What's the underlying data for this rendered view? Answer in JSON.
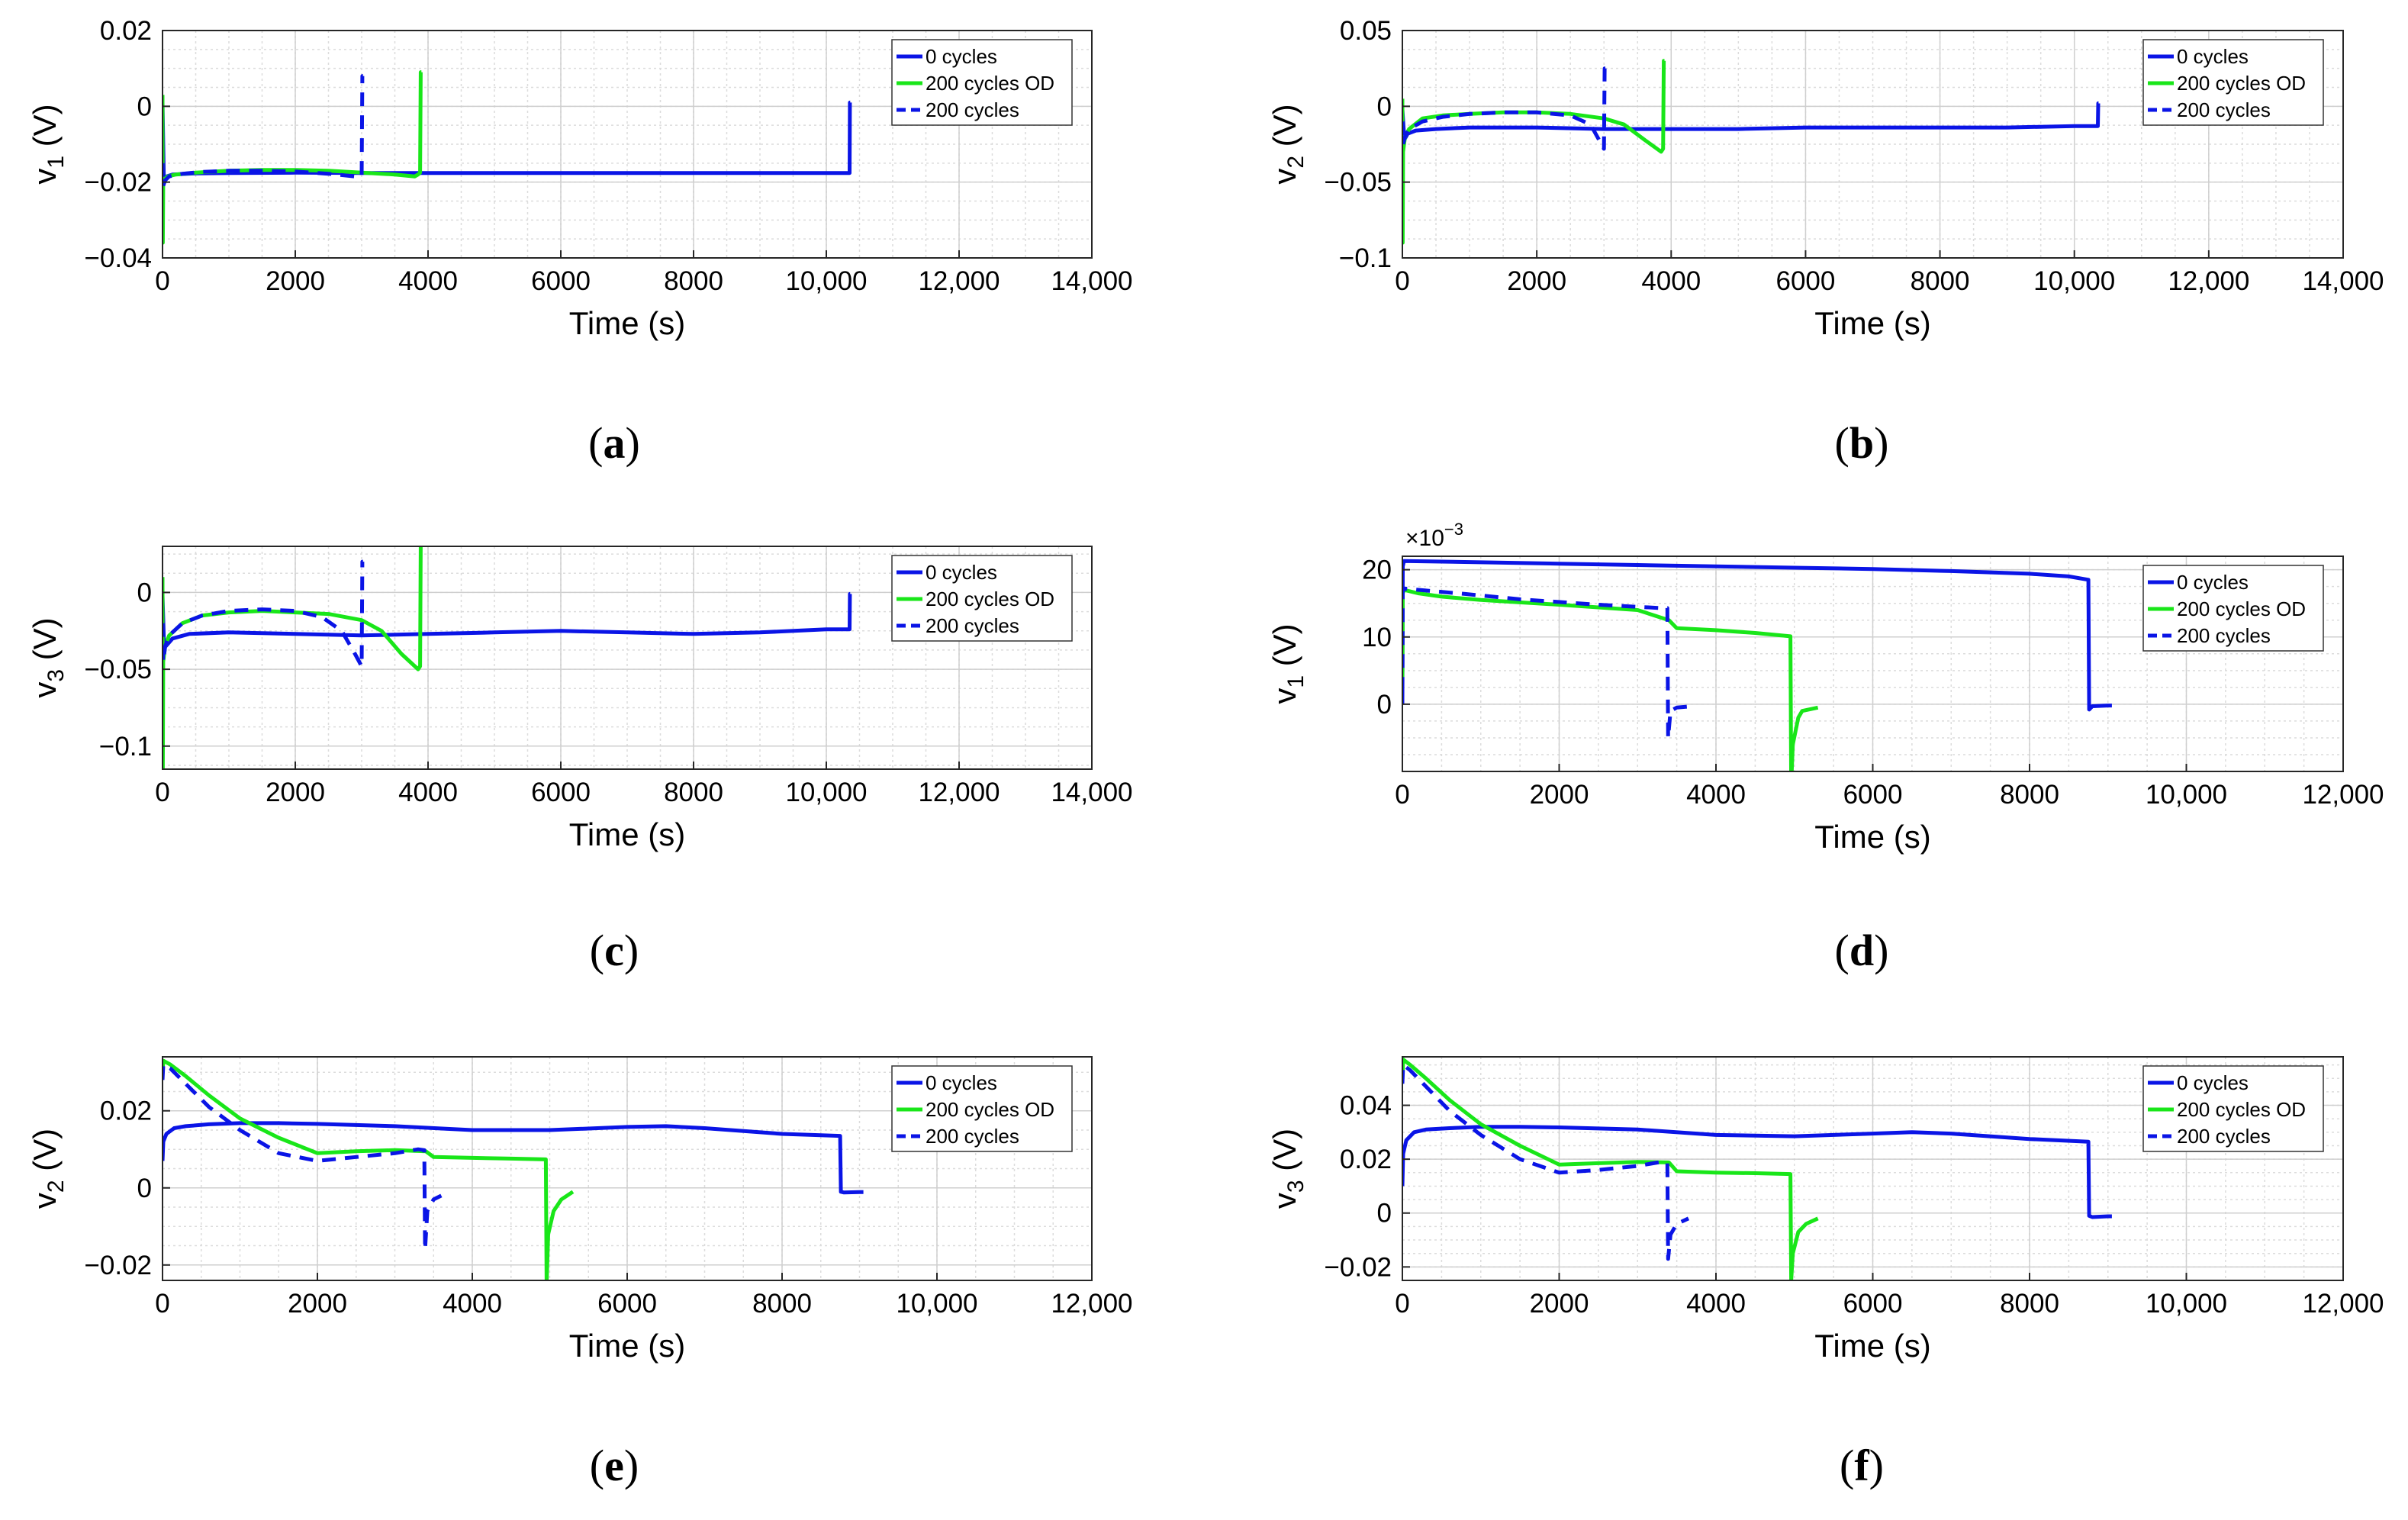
{
  "colors": {
    "blue": "#0a14e6",
    "green": "#19e619",
    "grid": "#dcdcdc",
    "axis": "#262626"
  },
  "chart_data": [
    {
      "type": "line",
      "panel": "a",
      "caption": "a",
      "ylabel_main": "v",
      "ylabel_sub": "1",
      "ylabel_unit": " (V)",
      "xlabel": "Time (s)",
      "xlim": [
        0,
        14000
      ],
      "ylim": [
        -0.04,
        0.02
      ],
      "xticks": [
        0,
        2000,
        4000,
        6000,
        8000,
        10000,
        12000,
        14000
      ],
      "xtick_labels": [
        "0",
        "2000",
        "4000",
        "6000",
        "8000",
        "10,000",
        "12,000",
        "14,000"
      ],
      "yticks": [
        -0.04,
        -0.02,
        0,
        0.02
      ],
      "ytick_labels": [
        "−0.04",
        "−0.02",
        "0",
        "0.02"
      ],
      "legend_position": "top-right",
      "series": [
        {
          "name": "0 cycles",
          "style": "solid",
          "color": "blue",
          "x": [
            0,
            20,
            60,
            150,
            500,
            1000,
            2000,
            3000,
            4000,
            5000,
            6000,
            7000,
            8000,
            9000,
            10000,
            10350,
            10355,
            10360
          ],
          "y": [
            0.001,
            -0.019,
            -0.0185,
            -0.018,
            -0.0177,
            -0.0176,
            -0.0175,
            -0.0176,
            -0.0176,
            -0.0176,
            -0.0176,
            -0.0176,
            -0.0176,
            -0.0176,
            -0.0176,
            -0.0176,
            0.001,
            0.001
          ]
        },
        {
          "name": "200 cycles OD",
          "style": "solid",
          "color": "green",
          "x": [
            0,
            5,
            10,
            30,
            80,
            200,
            500,
            1000,
            1500,
            2000,
            2500,
            3000,
            3500,
            3800,
            3850,
            3880,
            3890,
            3900
          ],
          "y": [
            0.003,
            -0.036,
            -0.021,
            -0.019,
            -0.0185,
            -0.018,
            -0.0175,
            -0.017,
            -0.0168,
            -0.0168,
            -0.017,
            -0.0175,
            -0.018,
            -0.0185,
            -0.018,
            -0.0175,
            0.009,
            0.009
          ]
        },
        {
          "name": "200 cycles",
          "style": "dashed",
          "color": "blue",
          "x": [
            0,
            10,
            40,
            100,
            300,
            600,
            1000,
            1500,
            2000,
            2500,
            2900,
            3000,
            3010,
            3020
          ],
          "y": [
            -0.015,
            -0.021,
            -0.0195,
            -0.0185,
            -0.0178,
            -0.0173,
            -0.017,
            -0.017,
            -0.0172,
            -0.0178,
            -0.0185,
            -0.0185,
            0.008,
            0.008
          ]
        }
      ]
    },
    {
      "type": "line",
      "panel": "b",
      "caption": "b",
      "ylabel_main": "v",
      "ylabel_sub": "2",
      "ylabel_unit": " (V)",
      "xlabel": "Time (s)",
      "xlim": [
        0,
        14000
      ],
      "ylim": [
        -0.1,
        0.05
      ],
      "xticks": [
        0,
        2000,
        4000,
        6000,
        8000,
        10000,
        12000,
        14000
      ],
      "xtick_labels": [
        "0",
        "2000",
        "4000",
        "6000",
        "8000",
        "10,000",
        "12,000",
        "14,000"
      ],
      "yticks": [
        -0.1,
        -0.05,
        0,
        0.05
      ],
      "ytick_labels": [
        "−0.1",
        "−0.05",
        "0",
        "0.05"
      ],
      "legend_position": "top-right",
      "series": [
        {
          "name": "0 cycles",
          "style": "solid",
          "color": "blue",
          "x": [
            0,
            30,
            80,
            200,
            500,
            1000,
            2000,
            3000,
            4000,
            5000,
            6000,
            7000,
            8000,
            9000,
            10000,
            10350,
            10355,
            10360
          ],
          "y": [
            -0.002,
            -0.022,
            -0.018,
            -0.016,
            -0.015,
            -0.014,
            -0.014,
            -0.015,
            -0.015,
            -0.015,
            -0.014,
            -0.014,
            -0.014,
            -0.014,
            -0.013,
            -0.013,
            0.002,
            0.002
          ]
        },
        {
          "name": "200 cycles OD",
          "style": "solid",
          "color": "green",
          "x": [
            0,
            5,
            10,
            40,
            100,
            300,
            600,
            1000,
            1500,
            2000,
            2500,
            3000,
            3300,
            3600,
            3850,
            3880,
            3890,
            3900
          ],
          "y": [
            0.005,
            -0.09,
            -0.03,
            -0.02,
            -0.015,
            -0.008,
            -0.006,
            -0.005,
            -0.004,
            -0.004,
            -0.005,
            -0.008,
            -0.012,
            -0.022,
            -0.03,
            -0.028,
            0.03,
            0.03
          ]
        },
        {
          "name": "200 cycles",
          "style": "dashed",
          "color": "blue",
          "x": [
            0,
            10,
            40,
            100,
            300,
            600,
            1000,
            1500,
            2000,
            2500,
            2800,
            3000,
            3010,
            3020
          ],
          "y": [
            -0.01,
            -0.025,
            -0.02,
            -0.015,
            -0.01,
            -0.007,
            -0.005,
            -0.004,
            -0.004,
            -0.006,
            -0.012,
            -0.028,
            0.025,
            0.025
          ]
        }
      ]
    },
    {
      "type": "line",
      "panel": "c",
      "caption": "c",
      "ylabel_main": "v",
      "ylabel_sub": "3",
      "ylabel_unit": " (V)",
      "xlabel": "Time (s)",
      "xlim": [
        0,
        14000
      ],
      "ylim": [
        -0.115,
        0.03
      ],
      "xticks": [
        0,
        2000,
        4000,
        6000,
        8000,
        10000,
        12000,
        14000
      ],
      "xtick_labels": [
        "0",
        "2000",
        "4000",
        "6000",
        "8000",
        "10,000",
        "12,000",
        "14,000"
      ],
      "yticks": [
        -0.1,
        -0.05,
        0
      ],
      "ytick_labels": [
        "−0.1",
        "−0.05",
        "0"
      ],
      "legend_position": "top-right",
      "series": [
        {
          "name": "0 cycles",
          "style": "solid",
          "color": "blue",
          "x": [
            0,
            20,
            50,
            150,
            400,
            1000,
            2000,
            3000,
            4000,
            5000,
            6000,
            7000,
            8000,
            9000,
            10000,
            10350,
            10355,
            10360
          ],
          "y": [
            -0.002,
            -0.03,
            -0.035,
            -0.03,
            -0.027,
            -0.026,
            -0.027,
            -0.028,
            -0.027,
            -0.026,
            -0.025,
            -0.026,
            -0.027,
            -0.026,
            -0.024,
            -0.024,
            -0.001,
            -0.001
          ]
        },
        {
          "name": "200 cycles OD",
          "style": "solid",
          "color": "green",
          "x": [
            0,
            5,
            10,
            40,
            100,
            300,
            600,
            1000,
            1500,
            2000,
            2500,
            3000,
            3300,
            3600,
            3850,
            3880,
            3890,
            3900
          ],
          "y": [
            0.01,
            -0.115,
            -0.045,
            -0.035,
            -0.028,
            -0.02,
            -0.015,
            -0.013,
            -0.012,
            -0.013,
            -0.014,
            -0.018,
            -0.025,
            -0.04,
            -0.05,
            -0.048,
            0.03,
            0.03
          ]
        },
        {
          "name": "200 cycles",
          "style": "dashed",
          "color": "blue",
          "x": [
            0,
            10,
            40,
            100,
            300,
            600,
            1000,
            1500,
            2000,
            2400,
            2700,
            2900,
            3000,
            3010,
            3020
          ],
          "y": [
            -0.02,
            -0.045,
            -0.035,
            -0.028,
            -0.02,
            -0.015,
            -0.012,
            -0.011,
            -0.012,
            -0.016,
            -0.025,
            -0.04,
            -0.048,
            0.02,
            0.02
          ]
        }
      ]
    },
    {
      "type": "line",
      "panel": "d",
      "caption": "d",
      "ylabel_main": "v",
      "ylabel_sub": "1",
      "ylabel_unit": " (V)",
      "xlabel": "Time (s)",
      "xlim": [
        0,
        12000
      ],
      "ylim": [
        -10,
        22
      ],
      "exponent_base": "×10",
      "exponent_power": "−3",
      "xticks": [
        0,
        2000,
        4000,
        6000,
        8000,
        10000,
        12000
      ],
      "xtick_labels": [
        "0",
        "2000",
        "4000",
        "6000",
        "8000",
        "10,000",
        "12,000"
      ],
      "yticks": [
        0,
        10,
        20
      ],
      "ytick_labels": [
        "0",
        "10",
        "20"
      ],
      "legend_position": "top-right",
      "series": [
        {
          "name": "0 cycles",
          "style": "solid",
          "color": "blue",
          "x": [
            0,
            5,
            20,
            500,
            1000,
            2000,
            3000,
            4000,
            5000,
            6000,
            7000,
            8000,
            8500,
            8750,
            8760,
            8800,
            9000,
            9050
          ],
          "y": [
            0,
            20.5,
            21.3,
            21.2,
            21.1,
            20.9,
            20.7,
            20.5,
            20.3,
            20.1,
            19.8,
            19.4,
            19.0,
            18.5,
            -0.8,
            -0.3,
            -0.2,
            -0.2
          ]
        },
        {
          "name": "200 cycles OD",
          "style": "solid",
          "color": "green",
          "x": [
            0,
            5,
            20,
            200,
            500,
            1000,
            2000,
            3000,
            3400,
            3500,
            4000,
            4500,
            4950,
            4960,
            4980,
            5050,
            5100,
            5300
          ],
          "y": [
            4,
            16.5,
            17.0,
            16.5,
            16.0,
            15.5,
            14.8,
            14.0,
            12.5,
            11.3,
            11.0,
            10.6,
            10.1,
            -12,
            -6,
            -2,
            -1,
            -0.5
          ]
        },
        {
          "name": "200 cycles",
          "style": "dashed",
          "color": "blue",
          "x": [
            0,
            5,
            30,
            300,
            800,
            1500,
            2500,
            3300,
            3380,
            3390,
            3420,
            3500,
            3700
          ],
          "y": [
            2,
            16.8,
            17.2,
            16.9,
            16.4,
            15.6,
            14.8,
            14.3,
            14.3,
            -5,
            -1,
            -0.5,
            -0.3
          ]
        }
      ]
    },
    {
      "type": "line",
      "panel": "e",
      "caption": "e",
      "ylabel_main": "v",
      "ylabel_sub": "2",
      "ylabel_unit": " (V)",
      "xlabel": "Time (s)",
      "xlim": [
        0,
        12000
      ],
      "ylim": [
        -0.024,
        0.034
      ],
      "xticks": [
        0,
        2000,
        4000,
        6000,
        8000,
        10000,
        12000
      ],
      "xtick_labels": [
        "0",
        "2000",
        "4000",
        "6000",
        "8000",
        "10,000",
        "12,000"
      ],
      "yticks": [
        -0.02,
        0,
        0.02
      ],
      "ytick_labels": [
        "−0.02",
        "0",
        "0.02"
      ],
      "legend_position": "top-right",
      "series": [
        {
          "name": "0 cycles",
          "style": "solid",
          "color": "blue",
          "x": [
            0,
            10,
            50,
            150,
            300,
            600,
            1000,
            1500,
            2000,
            3000,
            4000,
            5000,
            6000,
            6500,
            7000,
            8000,
            8750,
            8760,
            8800,
            9000,
            9050
          ],
          "y": [
            0.007,
            0.012,
            0.014,
            0.0155,
            0.016,
            0.0165,
            0.0168,
            0.0168,
            0.0166,
            0.016,
            0.015,
            0.015,
            0.0158,
            0.016,
            0.0155,
            0.014,
            0.0135,
            -0.001,
            -0.0012,
            -0.0011,
            -0.0011
          ]
        },
        {
          "name": "200 cycles OD",
          "style": "solid",
          "color": "green",
          "x": [
            0,
            10,
            100,
            300,
            600,
            1000,
            1500,
            2000,
            2500,
            3000,
            3400,
            3500,
            4000,
            4500,
            4950,
            4960,
            4980,
            5050,
            5150,
            5300
          ],
          "y": [
            0.03,
            0.033,
            0.032,
            0.029,
            0.024,
            0.018,
            0.013,
            0.009,
            0.0095,
            0.0098,
            0.0095,
            0.008,
            0.0078,
            0.0076,
            0.0074,
            -0.025,
            -0.012,
            -0.006,
            -0.003,
            -0.001
          ]
        },
        {
          "name": "200 cycles",
          "style": "dashed",
          "color": "blue",
          "x": [
            0,
            10,
            100,
            300,
            600,
            1000,
            1500,
            2000,
            2500,
            3000,
            3300,
            3380,
            3390,
            3420,
            3500,
            3600
          ],
          "y": [
            0.028,
            0.032,
            0.031,
            0.027,
            0.021,
            0.015,
            0.009,
            0.007,
            0.008,
            0.009,
            0.01,
            0.0098,
            -0.016,
            -0.006,
            -0.003,
            -0.002
          ]
        }
      ]
    },
    {
      "type": "line",
      "panel": "f",
      "caption": "f",
      "ylabel_main": "v",
      "ylabel_sub": "3",
      "ylabel_unit": " (V)",
      "xlabel": "Time (s)",
      "xlim": [
        0,
        12000
      ],
      "ylim": [
        -0.025,
        0.058
      ],
      "xticks": [
        0,
        2000,
        4000,
        6000,
        8000,
        10000,
        12000
      ],
      "xtick_labels": [
        "0",
        "2000",
        "4000",
        "6000",
        "8000",
        "10,000",
        "12,000"
      ],
      "yticks": [
        -0.02,
        0,
        0.02,
        0.04
      ],
      "ytick_labels": [
        "−0.02",
        "0",
        "0.02",
        "0.04"
      ],
      "legend_position": "top-right",
      "series": [
        {
          "name": "0 cycles",
          "style": "solid",
          "color": "blue",
          "x": [
            0,
            10,
            50,
            150,
            300,
            600,
            1000,
            1500,
            2000,
            3000,
            4000,
            5000,
            6000,
            6500,
            7000,
            8000,
            8750,
            8760,
            8800,
            9000,
            9050
          ],
          "y": [
            0.01,
            0.022,
            0.027,
            0.03,
            0.031,
            0.0315,
            0.032,
            0.032,
            0.0318,
            0.031,
            0.029,
            0.0285,
            0.0295,
            0.03,
            0.0295,
            0.0275,
            0.0265,
            -0.001,
            -0.0015,
            -0.0012,
            -0.0012
          ]
        },
        {
          "name": "200 cycles OD",
          "style": "solid",
          "color": "green",
          "x": [
            0,
            10,
            100,
            300,
            600,
            1000,
            1500,
            2000,
            2500,
            3000,
            3400,
            3500,
            4000,
            4500,
            4950,
            4960,
            4980,
            5050,
            5150,
            5300
          ],
          "y": [
            0.05,
            0.057,
            0.055,
            0.05,
            0.042,
            0.033,
            0.025,
            0.018,
            0.0185,
            0.019,
            0.0188,
            0.0155,
            0.015,
            0.0148,
            0.0145,
            -0.025,
            -0.015,
            -0.007,
            -0.004,
            -0.002
          ]
        },
        {
          "name": "200 cycles",
          "style": "dashed",
          "color": "blue",
          "x": [
            0,
            10,
            100,
            300,
            600,
            1000,
            1500,
            2000,
            2500,
            3000,
            3300,
            3380,
            3390,
            3420,
            3500,
            3650
          ],
          "y": [
            0.048,
            0.055,
            0.053,
            0.047,
            0.038,
            0.029,
            0.02,
            0.015,
            0.016,
            0.0175,
            0.019,
            0.0185,
            -0.017,
            -0.008,
            -0.004,
            -0.002
          ]
        }
      ]
    }
  ]
}
